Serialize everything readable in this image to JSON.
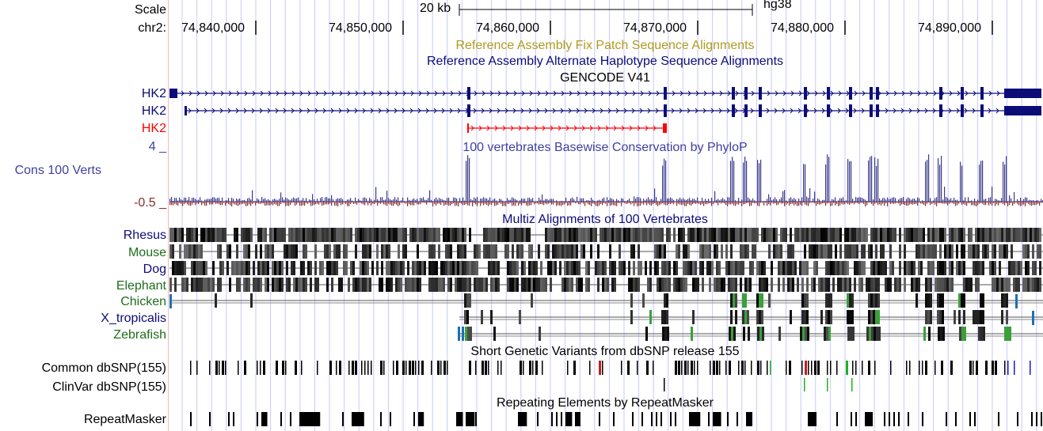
{
  "ruler": {
    "scale_label": "Scale",
    "scale_text": "20 kb",
    "assembly": "hg38",
    "chrom_label": "chr2:",
    "ticks": [
      "74,840,000",
      "74,850,000",
      "74,860,000",
      "74,870,000",
      "74,880,000",
      "74,890,000"
    ]
  },
  "tracks": {
    "fix_patch_title": "Reference Assembly Fix Patch Sequence Alignments",
    "alt_haplotype_title": "Reference Assembly Alternate Haplotype Sequence Alignments",
    "gencode_title": "GENCODE V41",
    "gencode_items": [
      "HK2",
      "HK2",
      "HK2"
    ],
    "cons_title": "100 vertebrates Basewise Conservation by PhyloP",
    "cons_label": "Cons 100 Verts",
    "cons_max": "4 _",
    "cons_min": "-0.5 _",
    "multiz_title": "Multiz Alignments of 100 Vertebrates",
    "species": [
      "Rhesus",
      "Mouse",
      "Dog",
      "Elephant",
      "Chicken",
      "X_tropicalis",
      "Zebrafish"
    ],
    "snp_title": "Short Genetic Variants from dbSNP release 155",
    "snp_common_label": "Common dbSNP(155)",
    "snp_clinvar_label": "ClinVar dbSNP(155)",
    "rmsk_title": "Repeating Elements by RepeatMasker",
    "rmsk_label": "RepeatMasker"
  },
  "colors": {
    "gene_blue": "#0c0c78",
    "gene_red": "#ff0000",
    "fix_patch": "#b09a20",
    "cons_title": "#4040a0",
    "cons_bar": "#3a3a8c",
    "cons_neg": "#8b2e2e",
    "grid": "#c8c8ff",
    "black": "#000000",
    "green": "#1e6e1e",
    "navy": "#0a0a70"
  }
}
